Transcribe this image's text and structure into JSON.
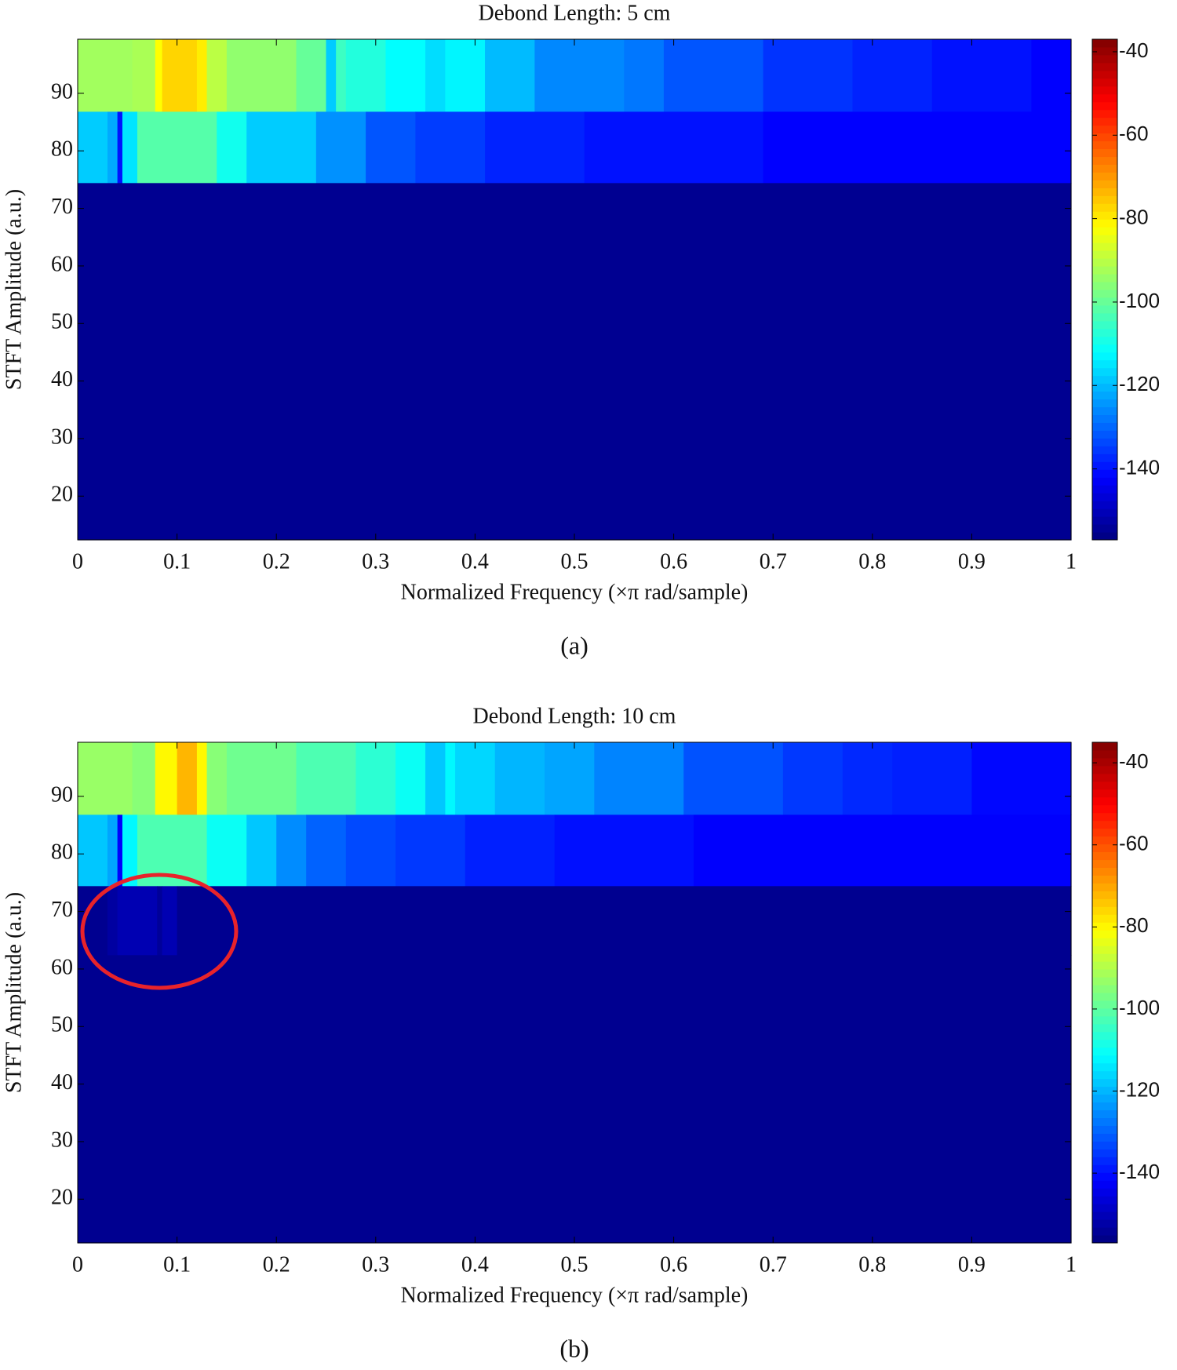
{
  "chart_data": [
    {
      "type": "heatmap",
      "title": "Debond Length: 5 cm",
      "xlabel": "Normalized Frequency (×π rad/sample)",
      "ylabel": "STFT Amplitude (a.u.)",
      "caption": "(a)",
      "xlim": [
        0,
        1
      ],
      "xticks": [
        0,
        0.1,
        0.2,
        0.3,
        0.4,
        0.5,
        0.6,
        0.7,
        0.8,
        0.9,
        1
      ],
      "ylim": [
        12.4,
        99.4
      ],
      "yticks": [
        20,
        30,
        40,
        50,
        60,
        70,
        80,
        90
      ],
      "colormap": "jet",
      "clim": [
        -157,
        -37
      ],
      "cticks": [
        -140,
        -120,
        -100,
        -80,
        -60,
        -40
      ],
      "rows": [
        {
          "y": [
            86.8,
            99.4
          ],
          "x": [
            0,
            0.055,
            0.078,
            0.085,
            0.12,
            0.13,
            0.15,
            0.22,
            0.25,
            0.26,
            0.27,
            0.31,
            0.35,
            0.37,
            0.41,
            0.46,
            0.55,
            0.59,
            0.69,
            0.78,
            0.86,
            0.96,
            1
          ],
          "values": [
            -93,
            -92,
            -82,
            -77,
            -80,
            -90,
            -95,
            -100,
            -118,
            -105,
            -108,
            -112,
            -116,
            -113,
            -120,
            -126,
            -128,
            -132,
            -136,
            -138,
            -140,
            -142
          ]
        },
        {
          "y": [
            74.4,
            86.8
          ],
          "x": [
            0,
            0.03,
            0.04,
            0.045,
            0.06,
            0.14,
            0.17,
            0.24,
            0.29,
            0.34,
            0.41,
            0.51,
            0.69,
            1
          ],
          "values": [
            -118,
            -122,
            -140,
            -115,
            -102,
            -110,
            -118,
            -125,
            -132,
            -135,
            -138,
            -140,
            -142
          ]
        },
        {
          "y": [
            12.4,
            74.4
          ],
          "x": [
            0,
            1
          ],
          "values": [
            -155
          ]
        }
      ]
    },
    {
      "type": "heatmap",
      "title": "Debond Length: 10 cm",
      "xlabel": "Normalized Frequency (×π rad/sample)",
      "ylabel": "STFT Amplitude (a.u.)",
      "caption": "(b)",
      "xlim": [
        0,
        1
      ],
      "xticks": [
        0,
        0.1,
        0.2,
        0.3,
        0.4,
        0.5,
        0.6,
        0.7,
        0.8,
        0.9,
        1
      ],
      "ylim": [
        12.4,
        99.4
      ],
      "yticks": [
        20,
        30,
        40,
        50,
        60,
        70,
        80,
        90
      ],
      "colormap": "jet",
      "clim": [
        -157,
        -35
      ],
      "cticks": [
        -140,
        -120,
        -100,
        -80,
        -60,
        -40
      ],
      "rows": [
        {
          "y": [
            86.8,
            99.4
          ],
          "x": [
            0,
            0.055,
            0.078,
            0.1,
            0.12,
            0.13,
            0.15,
            0.22,
            0.28,
            0.32,
            0.35,
            0.37,
            0.38,
            0.42,
            0.47,
            0.52,
            0.61,
            0.71,
            0.77,
            0.82,
            0.9,
            1
          ],
          "values": [
            -93,
            -95,
            -80,
            -72,
            -80,
            -95,
            -98,
            -102,
            -106,
            -110,
            -118,
            -112,
            -116,
            -120,
            -122,
            -126,
            -132,
            -135,
            -137,
            -138,
            -141
          ]
        },
        {
          "y": [
            74.4,
            86.8
          ],
          "x": [
            0,
            0.03,
            0.04,
            0.045,
            0.06,
            0.13,
            0.17,
            0.2,
            0.23,
            0.27,
            0.32,
            0.39,
            0.48,
            0.62,
            1
          ],
          "values": [
            -118,
            -122,
            -142,
            -112,
            -102,
            -110,
            -118,
            -125,
            -130,
            -133,
            -135,
            -138,
            -140,
            -142
          ]
        },
        {
          "y": [
            62.4,
            74.4
          ],
          "x": [
            0,
            0.03,
            0.04,
            0.08,
            0.085,
            0.1,
            1
          ],
          "values": [
            -155,
            -153,
            -151,
            -154,
            -151,
            -155
          ]
        },
        {
          "y": [
            12.4,
            62.4
          ],
          "x": [
            0,
            1
          ],
          "values": [
            -155
          ]
        }
      ]
    }
  ]
}
